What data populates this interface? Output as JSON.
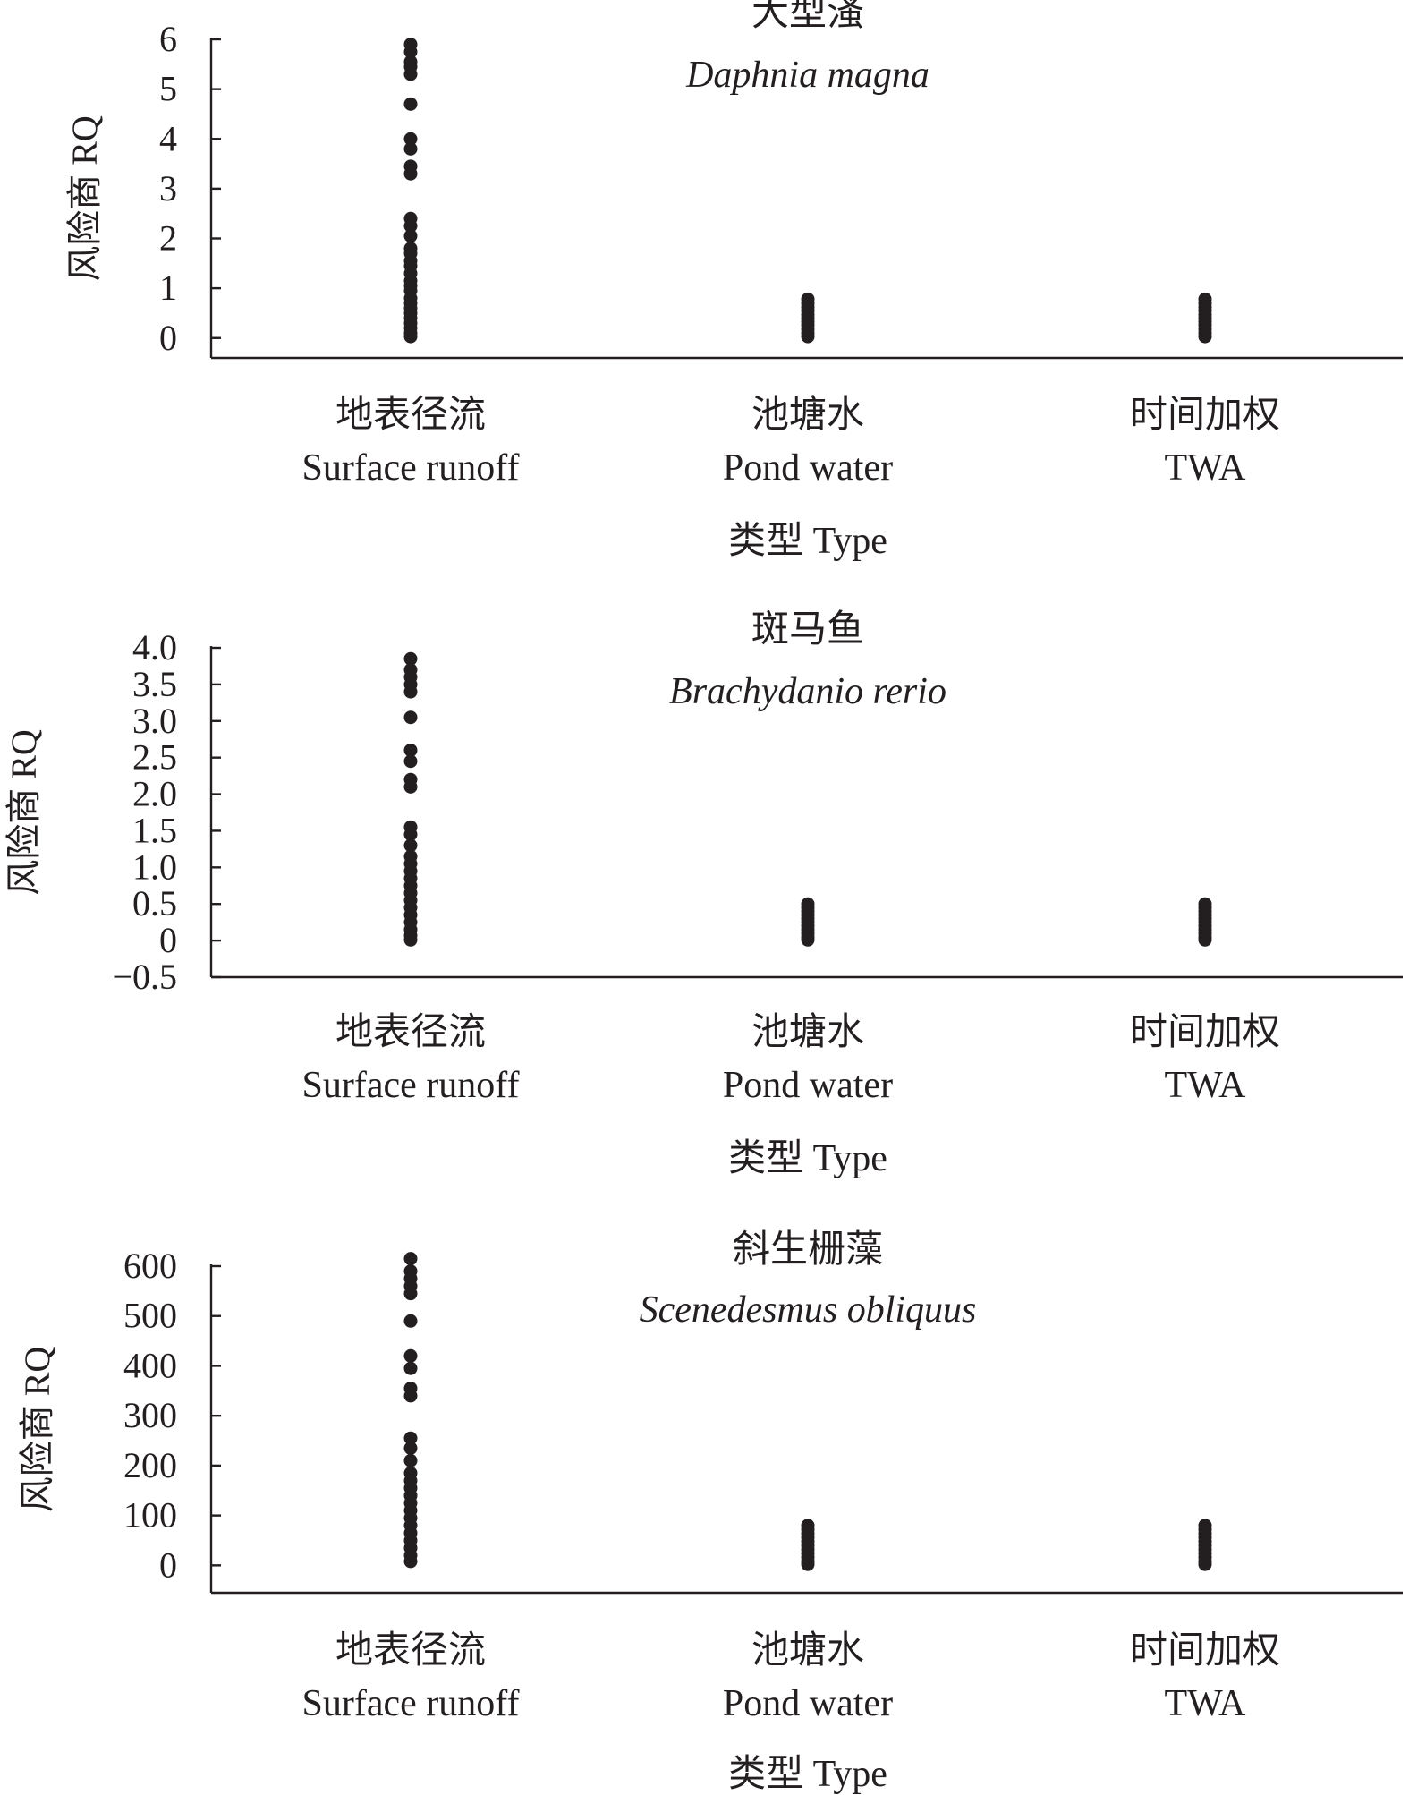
{
  "chart_data": [
    {
      "type": "scatter",
      "title": "大型溞",
      "subtitle": "Daphnia magna",
      "ylabel": "风险商 RQ",
      "xlabel": "类型 Type",
      "categories": [
        {
          "cn": "地表径流",
          "en": "Surface runoff"
        },
        {
          "cn": "池塘水",
          "en": "Pond water"
        },
        {
          "cn": "时间加权",
          "en": "TWA"
        }
      ],
      "ylim": [
        -0.4,
        6
      ],
      "yticks": [
        {
          "value": 0,
          "label": "0"
        },
        {
          "value": 1,
          "label": "1"
        },
        {
          "value": 2,
          "label": "2"
        },
        {
          "value": 3,
          "label": "3"
        },
        {
          "value": 4,
          "label": "4"
        },
        {
          "value": 5,
          "label": "5"
        },
        {
          "value": 6,
          "label": "6"
        }
      ],
      "series": [
        {
          "category": "Surface runoff",
          "values": [
            5.9,
            5.75,
            5.55,
            5.45,
            5.3,
            4.7,
            4.0,
            3.8,
            3.45,
            3.3,
            2.4,
            2.25,
            2.05,
            1.8,
            1.7,
            1.55,
            1.45,
            1.3,
            1.15,
            1.05,
            0.95,
            0.8,
            0.7,
            0.6,
            0.5,
            0.4,
            0.3,
            0.2,
            0.1,
            0.03
          ]
        },
        {
          "category": "Pond water",
          "values": [
            0.78,
            0.7,
            0.62,
            0.55,
            0.47,
            0.4,
            0.33,
            0.26,
            0.18,
            0.1,
            0.03
          ]
        },
        {
          "category": "TWA",
          "values": [
            0.78,
            0.7,
            0.62,
            0.55,
            0.47,
            0.4,
            0.33,
            0.26,
            0.18,
            0.1,
            0.03
          ]
        }
      ]
    },
    {
      "type": "scatter",
      "title": "斑马鱼",
      "subtitle": "Brachydanio rerio",
      "ylabel": "风险商 RQ",
      "xlabel": "类型 Type",
      "categories": [
        {
          "cn": "地表径流",
          "en": "Surface runoff"
        },
        {
          "cn": "池塘水",
          "en": "Pond water"
        },
        {
          "cn": "时间加权",
          "en": "TWA"
        }
      ],
      "ylim": [
        -0.5,
        4.0
      ],
      "yticks": [
        {
          "value": -0.5,
          "label": "−0.5"
        },
        {
          "value": 0,
          "label": "0"
        },
        {
          "value": 0.5,
          "label": "0.5"
        },
        {
          "value": 1.0,
          "label": "1.0"
        },
        {
          "value": 1.5,
          "label": "1.5"
        },
        {
          "value": 2.0,
          "label": "2.0"
        },
        {
          "value": 2.5,
          "label": "2.5"
        },
        {
          "value": 3.0,
          "label": "3.0"
        },
        {
          "value": 3.5,
          "label": "3.5"
        },
        {
          "value": 4.0,
          "label": "4.0"
        }
      ],
      "series": [
        {
          "category": "Surface runoff",
          "values": [
            3.85,
            3.7,
            3.6,
            3.5,
            3.4,
            3.05,
            2.6,
            2.45,
            2.2,
            2.1,
            1.55,
            1.45,
            1.3,
            1.15,
            1.05,
            0.95,
            0.85,
            0.75,
            0.65,
            0.55,
            0.45,
            0.35,
            0.25,
            0.15,
            0.07,
            0.01
          ]
        },
        {
          "category": "Pond water",
          "values": [
            0.5,
            0.45,
            0.4,
            0.35,
            0.3,
            0.25,
            0.2,
            0.15,
            0.1,
            0.05,
            0.01
          ]
        },
        {
          "category": "TWA",
          "values": [
            0.5,
            0.45,
            0.4,
            0.35,
            0.3,
            0.25,
            0.2,
            0.15,
            0.1,
            0.05,
            0.01
          ]
        }
      ]
    },
    {
      "type": "scatter",
      "title": "斜生栅藻",
      "subtitle": "Scenedesmus obliquus",
      "ylabel": "风险商 RQ",
      "xlabel": "类型 Type",
      "categories": [
        {
          "cn": "地表径流",
          "en": "Surface runoff"
        },
        {
          "cn": "池塘水",
          "en": "Pond water"
        },
        {
          "cn": "时间加权",
          "en": "TWA"
        }
      ],
      "ylim": [
        -55,
        600
      ],
      "yticks": [
        {
          "value": 0,
          "label": "0"
        },
        {
          "value": 100,
          "label": "100"
        },
        {
          "value": 200,
          "label": "200"
        },
        {
          "value": 300,
          "label": "300"
        },
        {
          "value": 400,
          "label": "400"
        },
        {
          "value": 500,
          "label": "500"
        },
        {
          "value": 600,
          "label": "600"
        }
      ],
      "series": [
        {
          "category": "Surface runoff",
          "values": [
            615,
            590,
            575,
            560,
            545,
            490,
            420,
            395,
            355,
            340,
            255,
            235,
            210,
            185,
            170,
            155,
            140,
            125,
            110,
            95,
            80,
            65,
            50,
            35,
            20,
            8
          ]
        },
        {
          "category": "Pond water",
          "values": [
            80,
            72,
            64,
            56,
            48,
            40,
            32,
            24,
            16,
            8,
            2
          ]
        },
        {
          "category": "TWA",
          "values": [
            80,
            72,
            64,
            56,
            48,
            40,
            32,
            24,
            16,
            8,
            2
          ]
        }
      ]
    }
  ]
}
